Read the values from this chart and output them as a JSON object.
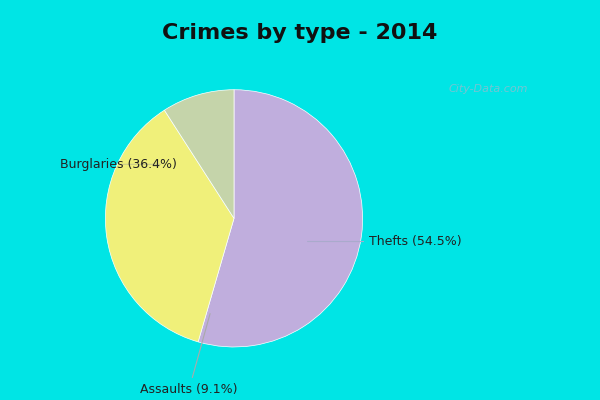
{
  "title": "Crimes by type - 2014",
  "slices": [
    {
      "label": "Thefts (54.5%)",
      "value": 54.5,
      "color": "#c0aedd"
    },
    {
      "label": "Burglaries (36.4%)",
      "value": 36.4,
      "color": "#f0f07a"
    },
    {
      "label": "Assaults (9.1%)",
      "value": 9.1,
      "color": "#c5d4aa"
    }
  ],
  "bg_color": "#00e5e5",
  "inner_bg": "#daf0e8",
  "title_fontsize": 16,
  "label_fontsize": 9,
  "watermark": "City-Data.com",
  "startangle": 90,
  "figsize": [
    6.0,
    4.0
  ],
  "dpi": 100
}
